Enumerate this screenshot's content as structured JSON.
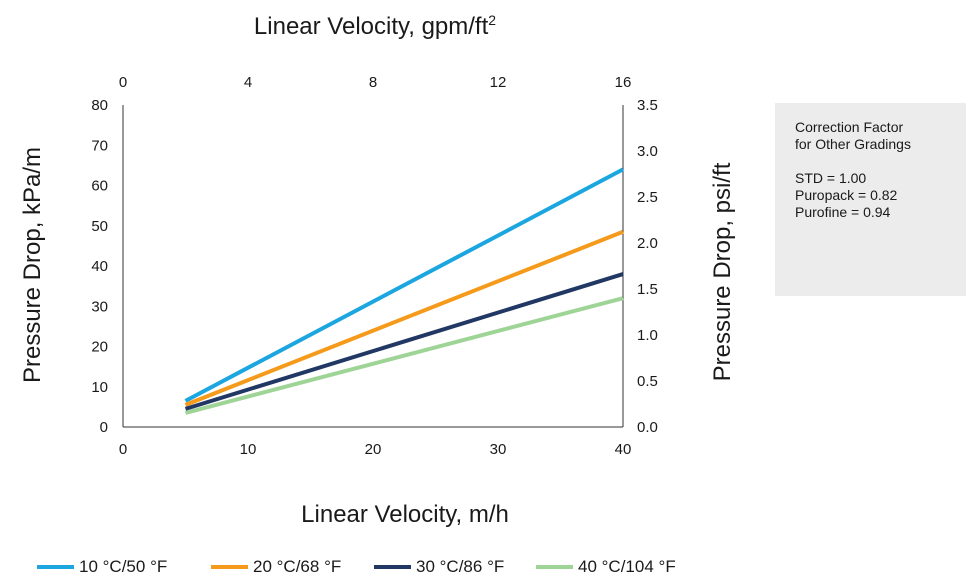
{
  "chart_data": {
    "type": "line",
    "xlabel": "Linear Velocity, m/h",
    "x2label": "Linear Velocity, gpm/ft",
    "x2label_sup": "2",
    "ylabel": "Pressure Drop, kPa/m",
    "y2label": "Pressure Drop, psi/ft",
    "xlim": [
      0,
      40
    ],
    "x2lim": [
      0,
      16
    ],
    "ylim": [
      0,
      80
    ],
    "y2lim": [
      0,
      3.5
    ],
    "xticks": [
      "0",
      "10",
      "20",
      "30",
      "40"
    ],
    "x2ticks": [
      "0",
      "4",
      "8",
      "12",
      "16"
    ],
    "yticks": [
      "0",
      "10",
      "20",
      "30",
      "40",
      "50",
      "60",
      "70",
      "80"
    ],
    "y2ticks": [
      "0.0",
      "0.5",
      "1.0",
      "1.5",
      "2.0",
      "2.5",
      "3.0",
      "3.5"
    ],
    "grid": false,
    "legend_position": "bottom",
    "series": [
      {
        "name": "10 °C/50 °F",
        "color": "#1ba6e0",
        "x": [
          5,
          40
        ],
        "y": [
          6.5,
          64
        ]
      },
      {
        "name": "20 °C/68 °F",
        "color": "#f59a1b",
        "x": [
          5,
          40
        ],
        "y": [
          5.5,
          48.5
        ]
      },
      {
        "name": "30 °C/86 °F",
        "color": "#223864",
        "x": [
          5,
          40
        ],
        "y": [
          4.5,
          38
        ]
      },
      {
        "name": "40 °C/104 °F",
        "color": "#9fd497",
        "x": [
          5,
          40
        ],
        "y": [
          3.5,
          32
        ]
      }
    ]
  },
  "note": {
    "title_line1": "Correction Factor",
    "title_line2": "for Other Gradings",
    "items": [
      "STD = 1.00",
      "Puropack = 0.82",
      "Purofine = 0.94"
    ]
  }
}
